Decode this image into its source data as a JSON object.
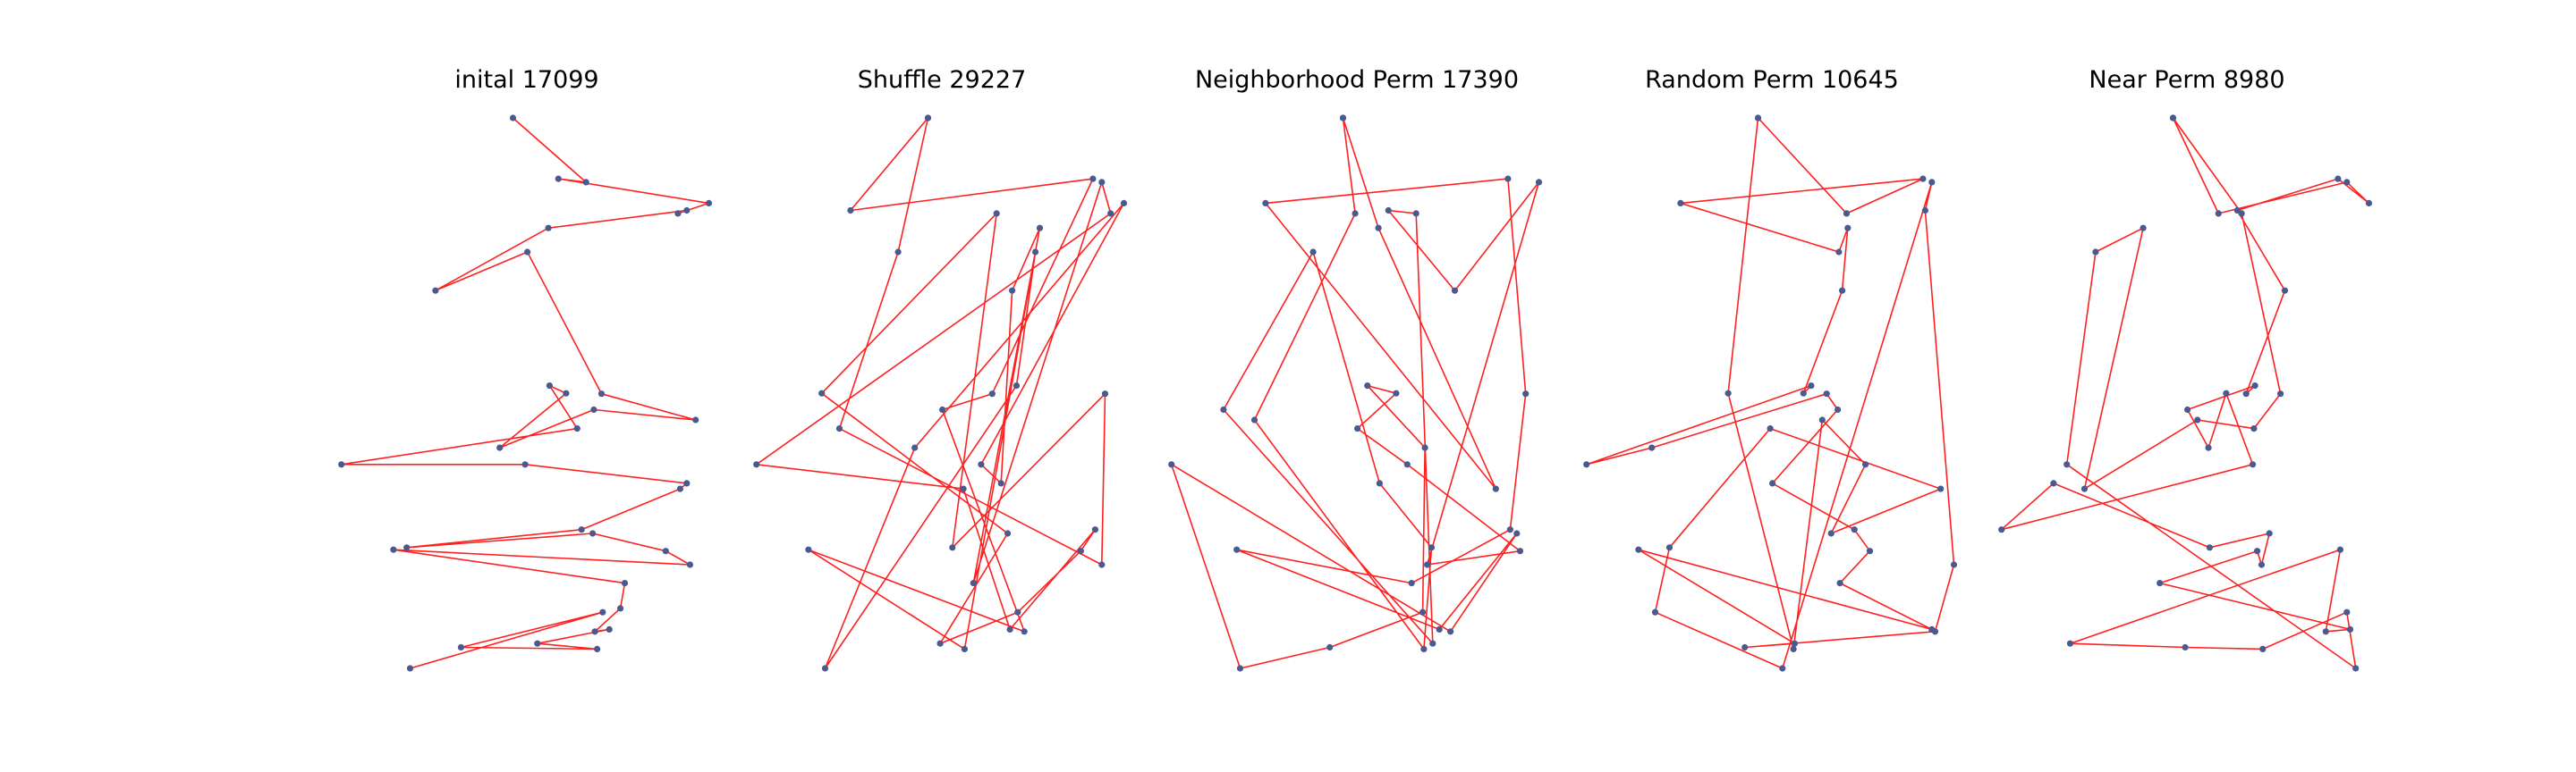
{
  "chart_data": [
    {
      "type": "line",
      "title": "inital 17099",
      "x": [
        4.55,
        5.21,
        4.96,
        6.32,
        6.04,
        6.12,
        4.87,
        3.85,
        4.68,
        5.35,
        6.2,
        5.28,
        4.43,
        5.03,
        4.88,
        5.13,
        3.0,
        4.66,
        6.12,
        6.06,
        5.17,
        3.59,
        5.27,
        5.93,
        6.15,
        3.47,
        5.56,
        5.52,
        5.29,
        5.42,
        4.77,
        5.31,
        4.08,
        5.36,
        3.62
      ],
      "y": [
        12.5,
        11.0,
        11.08,
        10.51,
        10.27,
        10.34,
        9.93,
        8.47,
        9.37,
        6.06,
        5.45,
        5.69,
        4.8,
        6.07,
        6.25,
        5.25,
        4.41,
        4.41,
        3.97,
        3.84,
        2.89,
        2.47,
        2.8,
        2.39,
        2.07,
        2.42,
        1.64,
        1.05,
        0.51,
        0.56,
        0.23,
        0.1,
        0.14,
        0.96,
        -0.35
      ],
      "show_axes": false
    },
    {
      "type": "line",
      "title": "Shuffle 29227",
      "x": [
        4.55,
        3.85,
        6.04,
        5.13,
        4.68,
        5.42,
        3.47,
        4.88,
        5.52,
        5.35,
        3.62,
        4.43,
        6.32,
        5.03,
        5.21,
        5.31,
        5.56,
        4.96,
        6.12,
        6.2,
        3.0,
        4.87,
        5.29,
        6.06,
        5.93,
        5.36,
        4.66,
        5.27,
        3.59,
        5.17,
        4.77,
        6.15,
        6.12,
        3.75,
        4.28,
        4.55
      ],
      "y": [
        12.5,
        10.34,
        11.08,
        6.06,
        5.69,
        0.51,
        2.42,
        0.1,
        9.37,
        6.25,
        -0.35,
        4.8,
        10.51,
        4.41,
        3.97,
        8.47,
        9.93,
        1.64,
        11.0,
        10.27,
        4.41,
        3.84,
        0.56,
        2.89,
        2.39,
        0.96,
        0.23,
        2.8,
        6.07,
        10.27,
        2.47,
        6.06,
        2.07,
        5.25,
        9.37,
        12.5
      ],
      "show_axes": false
    },
    {
      "type": "line",
      "title": "Neighborhood Perm 17390",
      "x": [
        4.55,
        4.87,
        5.93,
        3.85,
        6.04,
        6.2,
        6.06,
        5.17,
        3.59,
        5.42,
        6.12,
        5.52,
        3.0,
        3.62,
        4.43,
        5.27,
        5.29,
        4.77,
        5.03,
        4.68,
        5.13,
        6.15,
        5.31,
        6.32,
        5.56,
        4.96,
        5.21,
        5.36,
        3.47,
        4.28,
        4.88,
        5.35,
        5.28,
        3.75,
        4.66,
        4.55
      ],
      "y": [
        12.5,
        9.93,
        3.84,
        10.51,
        11.08,
        6.06,
        2.89,
        1.64,
        2.42,
        0.56,
        2.8,
        0.51,
        4.41,
        -0.35,
        0.14,
        0.96,
        4.8,
        6.25,
        6.07,
        5.25,
        4.41,
        2.39,
        2.07,
        11.0,
        8.47,
        10.34,
        10.27,
        0.23,
        5.69,
        9.37,
        3.97,
        2.47,
        0.1,
        5.45,
        10.27,
        12.5
      ],
      "show_axes": false
    },
    {
      "type": "line",
      "title": "Random Perm 10645",
      "x": [
        4.55,
        5.35,
        6.04,
        3.85,
        5.28,
        5.36,
        5.31,
        4.96,
        5.03,
        3.0,
        3.59,
        5.17,
        5.27,
        4.68,
        5.42,
        5.56,
        5.29,
        6.12,
        3.47,
        4.88,
        4.43,
        6.15,
        6.32,
        6.06,
        6.12,
        4.77,
        3.62,
        3.75,
        4.66,
        6.2,
        5.21,
        5.52,
        5.13,
        4.87,
        4.28,
        4.55
      ],
      "y": [
        12.5,
        10.27,
        11.08,
        10.51,
        9.37,
        9.93,
        8.47,
        6.07,
        6.25,
        4.41,
        4.8,
        6.06,
        5.69,
        3.97,
        2.89,
        2.39,
        1.64,
        0.56,
        2.42,
        0.23,
        0.14,
        0.51,
        2.07,
        10.34,
        11.0,
        -0.35,
        0.96,
        2.47,
        5.25,
        3.84,
        2.8,
        4.41,
        5.45,
        0.1,
        6.07,
        12.5
      ],
      "show_axes": false
    },
    {
      "type": "line",
      "title": "Near Perm 8980",
      "x": [
        4.55,
        4.96,
        6.12,
        6.32,
        6.04,
        5.13,
        5.56,
        5.21,
        5.29,
        4.68,
        4.87,
        5.03,
        5.27,
        3.0,
        3.47,
        4.88,
        5.42,
        5.35,
        5.31,
        4.43,
        6.15,
        5.93,
        6.06,
        3.62,
        4.66,
        5.36,
        6.12,
        6.2,
        3.59,
        3.85,
        4.28,
        3.75,
        4.77,
        5.28,
        5.52,
        5.17,
        4.55
      ],
      "y": [
        12.5,
        10.27,
        11.0,
        10.51,
        11.08,
        10.34,
        8.47,
        6.06,
        6.25,
        5.69,
        4.8,
        6.07,
        4.41,
        2.89,
        3.97,
        2.47,
        2.8,
        2.07,
        2.39,
        1.64,
        0.56,
        0.51,
        2.42,
        0.23,
        0.14,
        0.1,
        0.96,
        -0.35,
        4.41,
        9.37,
        9.93,
        3.84,
        5.45,
        5.25,
        6.06,
        10.27,
        12.5
      ],
      "show_axes": false
    }
  ],
  "colors": {
    "route": "#ff2020",
    "city": "#4a5a8f"
  }
}
